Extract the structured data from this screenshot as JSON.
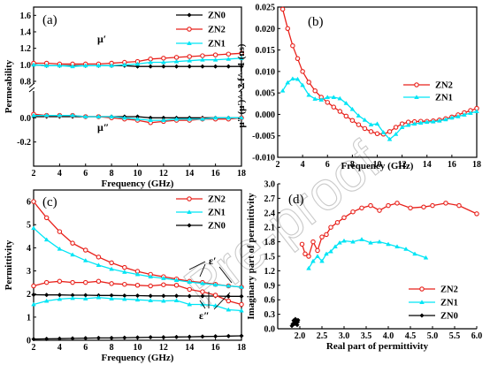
{
  "watermark": "Pre-proof",
  "colors": {
    "ZN0": "#000000",
    "ZN1": "#00e5f5",
    "ZN2": "#e8201a"
  },
  "chart_data": [
    {
      "panel": "(a)",
      "type": "line",
      "xlabel": "Frequency (GHz)",
      "ylabel": "Permeability",
      "xlim": [
        2,
        18
      ],
      "ylim_upper": [
        0.8,
        1.7
      ],
      "ylim_lower": [
        -0.4,
        0.2
      ],
      "xticks": [
        "2",
        "4",
        "6",
        "8",
        "10",
        "12",
        "14",
        "16",
        "18"
      ],
      "yticks_upper": [
        "0.8",
        "1.0",
        "1.2",
        "1.4",
        "1.6"
      ],
      "yticks_lower": [
        "-0.2",
        "0.0"
      ],
      "legend": [
        "ZN0",
        "ZN2",
        "ZN1"
      ],
      "annotations": [
        "μ′",
        "μ″"
      ],
      "x": [
        2,
        3,
        4,
        5,
        6,
        7,
        8,
        9,
        10,
        11,
        12,
        13,
        14,
        15,
        16,
        17,
        18
      ],
      "series": [
        {
          "name": "ZN0",
          "part": "real",
          "values": [
            1.0,
            0.99,
            0.99,
            0.99,
            0.99,
            0.99,
            0.99,
            0.99,
            0.98,
            0.98,
            0.98,
            0.98,
            0.98,
            0.98,
            0.98,
            0.98,
            0.98
          ]
        },
        {
          "name": "ZN2",
          "part": "real",
          "values": [
            1.02,
            1.02,
            1.01,
            1.01,
            1.01,
            1.01,
            1.02,
            1.03,
            1.04,
            1.07,
            1.08,
            1.09,
            1.1,
            1.11,
            1.12,
            1.13,
            1.14
          ]
        },
        {
          "name": "ZN1",
          "part": "real",
          "values": [
            1.0,
            0.99,
            0.99,
            0.98,
            0.99,
            0.99,
            0.99,
            1.0,
            1.01,
            1.03,
            1.03,
            1.04,
            1.05,
            1.06,
            1.06,
            1.07,
            1.08
          ]
        },
        {
          "name": "ZN0",
          "part": "imag",
          "values": [
            0.01,
            0.01,
            0.01,
            0.01,
            0.01,
            0.01,
            0.01,
            0.01,
            0.01,
            0.0,
            0.0,
            0.0,
            0.0,
            0.0,
            0.0,
            0.0,
            0.0
          ]
        },
        {
          "name": "ZN2",
          "part": "imag",
          "values": [
            0.03,
            0.02,
            0.02,
            0.02,
            0.01,
            0.01,
            0.0,
            -0.01,
            -0.02,
            -0.04,
            -0.03,
            -0.02,
            -0.02,
            -0.01,
            -0.01,
            -0.01,
            0.0
          ]
        },
        {
          "name": "ZN1",
          "part": "imag",
          "values": [
            0.02,
            0.02,
            0.02,
            0.02,
            0.01,
            0.01,
            0.01,
            0.0,
            -0.01,
            -0.02,
            -0.02,
            -0.01,
            -0.01,
            -0.01,
            0.0,
            0.0,
            0.0
          ]
        }
      ]
    },
    {
      "panel": "(b)",
      "type": "line",
      "xlabel": "Frequency (GHz)",
      "ylabel": "μ″ (μ′)^−2 f^−1 (ns)",
      "xlim": [
        2,
        18
      ],
      "ylim": [
        -0.01,
        0.025
      ],
      "xticks": [
        "2",
        "4",
        "6",
        "8",
        "10",
        "12",
        "14",
        "16",
        "18"
      ],
      "yticks": [
        "-0.010",
        "-0.005",
        "0.000",
        "0.005",
        "0.010",
        "0.015",
        "0.020",
        "0.025"
      ],
      "legend": [
        "ZN2",
        "ZN1"
      ],
      "x": [
        2.4,
        2.8,
        3.2,
        3.6,
        4,
        4.5,
        5,
        5.5,
        6,
        6.5,
        7,
        7.5,
        8,
        8.5,
        9,
        9.5,
        10,
        10.5,
        11,
        11.5,
        12,
        12.5,
        13,
        13.5,
        14,
        14.5,
        15,
        15.5,
        16,
        16.5,
        17,
        17.5,
        18
      ],
      "series": [
        {
          "name": "ZN2",
          "values": [
            0.0245,
            0.02,
            0.016,
            0.013,
            0.01,
            0.0075,
            0.0055,
            0.004,
            0.0028,
            0.0017,
            0.0007,
            -0.0004,
            -0.0014,
            -0.0024,
            -0.0033,
            -0.004,
            -0.0045,
            -0.0046,
            -0.004,
            -0.003,
            -0.0022,
            -0.0018,
            -0.0017,
            -0.0016,
            -0.0016,
            -0.0015,
            -0.0013,
            -0.001,
            -0.0006,
            -0.0001,
            0.0004,
            0.0009,
            0.0014
          ]
        },
        {
          "name": "ZN1",
          "values": [
            0.0055,
            0.0074,
            0.0083,
            0.0082,
            0.0068,
            0.0045,
            0.0036,
            0.0034,
            0.004,
            0.004,
            0.0037,
            0.0026,
            0.0012,
            -0.0003,
            -0.0013,
            -0.0024,
            -0.0022,
            -0.0042,
            -0.0058,
            -0.0046,
            -0.003,
            -0.0025,
            -0.0022,
            -0.002,
            -0.0018,
            -0.0017,
            -0.0015,
            -0.0012,
            -0.0008,
            -0.0005,
            -0.0001,
            0.0003,
            0.0007
          ]
        }
      ]
    },
    {
      "panel": "(c)",
      "type": "line",
      "xlabel": "Frequency (GHz)",
      "ylabel": "Permittivity",
      "xlim": [
        2,
        18
      ],
      "ylim": [
        0,
        6.5
      ],
      "xticks": [
        "2",
        "4",
        "6",
        "8",
        "10",
        "12",
        "14",
        "16",
        "18"
      ],
      "yticks": [
        "0",
        "1",
        "2",
        "3",
        "4",
        "5",
        "6"
      ],
      "legend": [
        "ZN2",
        "ZN1",
        "ZN0"
      ],
      "annotations": [
        "ε′",
        "ε″"
      ],
      "x": [
        2,
        3,
        4,
        5,
        6,
        7,
        8,
        9,
        10,
        11,
        12,
        13,
        14,
        15,
        16,
        17,
        18
      ],
      "series": [
        {
          "name": "ZN2",
          "part": "real",
          "values": [
            6.0,
            5.3,
            4.7,
            4.2,
            3.9,
            3.6,
            3.35,
            3.15,
            2.98,
            2.85,
            2.75,
            2.65,
            2.55,
            2.5,
            2.42,
            2.35,
            2.3
          ]
        },
        {
          "name": "ZN1",
          "part": "real",
          "values": [
            4.85,
            4.35,
            3.95,
            3.7,
            3.45,
            3.25,
            3.08,
            2.95,
            2.85,
            2.75,
            2.68,
            2.6,
            2.52,
            2.46,
            2.4,
            2.35,
            2.3
          ]
        },
        {
          "name": "ZN0",
          "part": "real",
          "values": [
            1.97,
            1.96,
            1.96,
            1.95,
            1.95,
            1.94,
            1.94,
            1.93,
            1.93,
            1.92,
            1.92,
            1.92,
            1.91,
            1.91,
            1.91,
            1.9,
            1.9
          ]
        },
        {
          "name": "ZN2",
          "part": "imag",
          "values": [
            2.35,
            2.5,
            2.55,
            2.5,
            2.5,
            2.55,
            2.45,
            2.42,
            2.38,
            2.35,
            2.4,
            2.38,
            2.2,
            2.1,
            1.95,
            1.7,
            1.55
          ]
        },
        {
          "name": "ZN1",
          "part": "imag",
          "values": [
            1.55,
            1.7,
            1.78,
            1.82,
            1.8,
            1.85,
            1.8,
            1.78,
            1.75,
            1.72,
            1.7,
            1.72,
            1.55,
            1.55,
            1.5,
            1.32,
            1.28
          ]
        },
        {
          "name": "ZN0",
          "part": "imag",
          "values": [
            0.05,
            0.06,
            0.07,
            0.08,
            0.09,
            0.1,
            0.1,
            0.11,
            0.12,
            0.13,
            0.13,
            0.14,
            0.15,
            0.16,
            0.17,
            0.18,
            0.19
          ]
        }
      ]
    },
    {
      "panel": "(d)",
      "type": "line",
      "xlabel": "Real part of permittivity",
      "ylabel": "Imaginary part of permittivity",
      "xlim": [
        1.5,
        6.0
      ],
      "ylim": [
        0.0,
        3.0
      ],
      "xticks": [
        "2.0",
        "2.5",
        "3.0",
        "3.5",
        "4.0",
        "4.5",
        "5.0",
        "5.5",
        "6.0"
      ],
      "yticks": [
        "0.0",
        "0.3",
        "0.6",
        "0.9",
        "1.2",
        "1.5",
        "1.8",
        "2.1",
        "2.4",
        "2.7",
        "3.0"
      ],
      "legend": [
        "ZN2",
        "ZN1",
        "ZN0"
      ],
      "series": [
        {
          "name": "ZN2",
          "x": [
            2.05,
            2.12,
            2.2,
            2.3,
            2.4,
            2.5,
            2.6,
            2.7,
            2.85,
            3.0,
            3.2,
            3.4,
            3.6,
            3.8,
            4.0,
            4.2,
            4.5,
            4.8,
            5.0,
            5.3,
            5.6,
            6.0
          ],
          "y": [
            1.75,
            1.55,
            1.5,
            1.8,
            1.62,
            1.9,
            1.95,
            2.1,
            2.2,
            2.3,
            2.42,
            2.5,
            2.55,
            2.45,
            2.55,
            2.6,
            2.5,
            2.52,
            2.55,
            2.6,
            2.55,
            2.38
          ]
        },
        {
          "name": "ZN1",
          "x": [
            2.2,
            2.3,
            2.4,
            2.5,
            2.6,
            2.7,
            2.8,
            2.9,
            3.0,
            3.2,
            3.4,
            3.6,
            3.8,
            4.0,
            4.2,
            4.4,
            4.6,
            4.85
          ],
          "y": [
            1.25,
            1.4,
            1.5,
            1.4,
            1.55,
            1.6,
            1.7,
            1.78,
            1.82,
            1.8,
            1.85,
            1.78,
            1.8,
            1.75,
            1.7,
            1.65,
            1.55,
            1.47
          ]
        },
        {
          "name": "ZN0",
          "x": [
            1.82,
            1.84,
            1.86,
            1.88,
            1.9,
            1.92,
            1.93,
            1.94,
            1.95,
            1.96
          ],
          "y": [
            0.06,
            0.1,
            0.17,
            0.1,
            0.2,
            0.12,
            0.16,
            0.08,
            0.14,
            0.18
          ]
        }
      ]
    }
  ]
}
